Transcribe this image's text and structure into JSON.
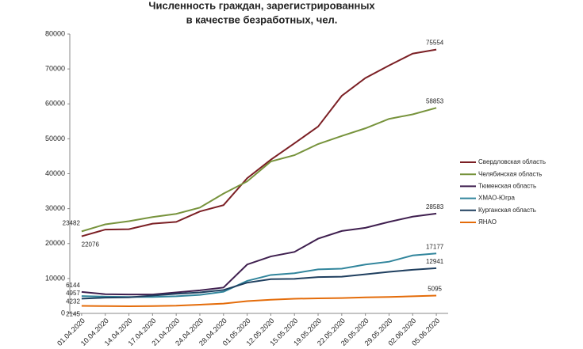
{
  "chart_data": {
    "type": "line",
    "title": [
      "Численность граждан, зарегистрированных",
      "в качестве безработных, чел."
    ],
    "categories": [
      "01.04.2020",
      "10.04.2020",
      "14.04.2020",
      "17.04.2020",
      "21.04.2020",
      "24.04.2020",
      "28.04.2020",
      "01.05.2020",
      "12.05.2020",
      "15.05.2020",
      "19.05.2020",
      "22.05.2020",
      "26.05.2020",
      "29.05.2020",
      "02.06.2020",
      "05.06.2020"
    ],
    "series": [
      {
        "name": "Свердловская область",
        "color": "#7b1f24",
        "values": [
          22076,
          24000,
          24100,
          25700,
          26200,
          29200,
          31000,
          38700,
          44000,
          48700,
          53500,
          62300,
          67400,
          71000,
          74400,
          75554
        ]
      },
      {
        "name": "Челябинская область",
        "color": "#77933c",
        "values": [
          23482,
          25500,
          26400,
          27600,
          28500,
          30300,
          34300,
          37800,
          43500,
          45300,
          48500,
          50800,
          53000,
          55700,
          57000,
          58853
        ]
      },
      {
        "name": "Тюменская область",
        "color": "#3f1f4f",
        "values": [
          6144,
          5500,
          5400,
          5400,
          6000,
          6600,
          7400,
          14000,
          16300,
          17600,
          21400,
          23600,
          24500,
          26200,
          27700,
          28583
        ]
      },
      {
        "name": "ХМАО-Югра",
        "color": "#31859c",
        "values": [
          4957,
          4800,
          4700,
          4700,
          4900,
          5300,
          6200,
          9300,
          11000,
          11500,
          12600,
          12800,
          14000,
          14800,
          16600,
          17177
        ]
      },
      {
        "name": "Курганская область",
        "color": "#1f3f5f",
        "values": [
          4232,
          4500,
          4600,
          5100,
          5600,
          6000,
          6700,
          8800,
          9800,
          9900,
          10400,
          10500,
          11200,
          11900,
          12500,
          12941
        ]
      },
      {
        "name": "ЯНАО",
        "color": "#e46c0a",
        "values": [
          2145,
          2100,
          2050,
          2100,
          2200,
          2500,
          2800,
          3500,
          3900,
          4200,
          4300,
          4400,
          4600,
          4700,
          4900,
          5095
        ]
      }
    ],
    "ylim": [
      0,
      80000
    ],
    "yticks": [
      0,
      10000,
      20000,
      30000,
      40000,
      50000,
      60000,
      70000,
      80000
    ],
    "legend": "right"
  }
}
